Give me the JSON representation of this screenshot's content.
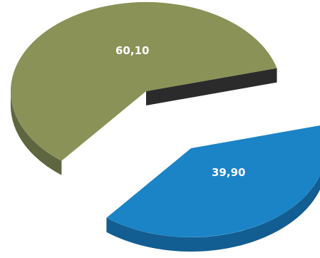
{
  "chart_data": {
    "type": "pie",
    "style": "3d-exploded",
    "title": "",
    "categories": [
      "",
      ""
    ],
    "values": [
      60.1,
      39.9
    ],
    "labels": [
      "60,10",
      "39,90"
    ],
    "colors": [
      "#8a9257",
      "#1a84c6"
    ],
    "side_colors": [
      "#5e6640",
      "#125d91"
    ],
    "cut_face_color": "#2b2b2b",
    "legend": "none"
  }
}
